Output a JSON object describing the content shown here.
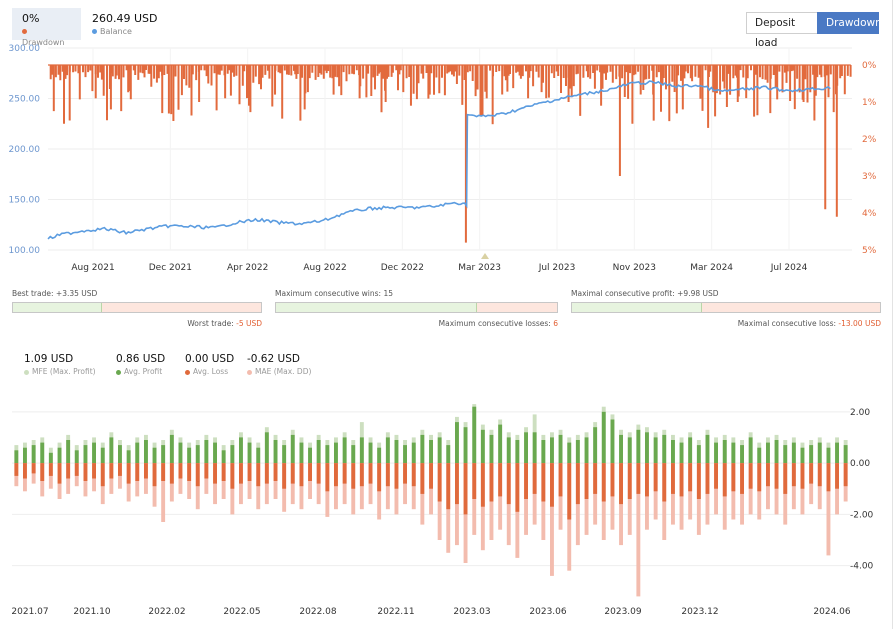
{
  "header": {
    "drawdown_value": "0%",
    "drawdown_label": "Drawdown",
    "balance_value": "260.49 USD",
    "balance_label": "Balance",
    "btn_deposit": "Deposit load",
    "btn_drawdown": "Drawdown"
  },
  "colors": {
    "balance": "#5b9ce0",
    "drawdown": "#e26a3d",
    "profit": "#6aa84f",
    "loss": "#e06a3c",
    "mfe": "#cddfc0",
    "mae": "#f3bcae",
    "accent": "#4a79c4"
  },
  "stats": {
    "best_trade_label": "Best trade:",
    "best_trade_value": "+3.35 USD",
    "worst_trade_label": "Worst trade:",
    "worst_trade_value": "-5 USD",
    "max_wins_label": "Maximum consecutive wins:",
    "max_wins_value": "15",
    "max_losses_label": "Maximum consecutive losses:",
    "max_losses_value": "6",
    "max_profit_label": "Maximal consecutive profit:",
    "max_profit_value": "+9.98 USD",
    "max_loss_label": "Maximal consecutive loss:",
    "max_loss_value": "-13.00 USD",
    "bar_fractions": [
      0.355,
      0.71,
      0.42
    ]
  },
  "legend2": [
    {
      "value": "1.09 USD",
      "label": "MFE (Max. Profit)",
      "color": "#cddfc0"
    },
    {
      "value": "0.86 USD",
      "label": "Avg. Profit",
      "color": "#6aa84f"
    },
    {
      "value": "0.00 USD",
      "label": "Avg. Loss",
      "color": "#e06a3c"
    },
    {
      "value": "-0.62 USD",
      "label": "MAE (Max. DD)",
      "color": "#f3bcae"
    }
  ],
  "chart_data": [
    {
      "type": "line",
      "series": [
        {
          "name": "Balance",
          "points": [
            [
              "2021-06-15",
              111
            ],
            [
              "2021-07-01",
              115
            ],
            [
              "2021-08-01",
              119
            ],
            [
              "2021-09-01",
              121
            ],
            [
              "2021-10-01",
              117
            ],
            [
              "2021-11-01",
              121
            ],
            [
              "2021-12-01",
              124
            ],
            [
              "2022-01-01",
              123
            ],
            [
              "2022-02-01",
              122
            ],
            [
              "2022-03-01",
              127
            ],
            [
              "2022-04-01",
              130
            ],
            [
              "2022-05-01",
              127
            ],
            [
              "2022-06-01",
              126
            ],
            [
              "2022-07-01",
              129
            ],
            [
              "2022-08-01",
              137
            ],
            [
              "2022-09-01",
              141
            ],
            [
              "2022-10-01",
              142
            ],
            [
              "2022-11-01",
              142
            ],
            [
              "2022-12-01",
              143
            ],
            [
              "2023-01-01",
              147
            ],
            [
              "2023-01-15",
              145
            ],
            [
              "2023-01-16",
              234
            ],
            [
              "2023-02-01",
              232
            ],
            [
              "2023-03-01",
              234
            ],
            [
              "2023-04-01",
              240
            ],
            [
              "2023-05-01",
              246
            ],
            [
              "2023-06-01",
              251
            ],
            [
              "2023-07-01",
              255
            ],
            [
              "2023-08-01",
              259
            ],
            [
              "2023-09-01",
              265
            ],
            [
              "2023-10-01",
              266
            ],
            [
              "2023-11-01",
              262
            ],
            [
              "2023-12-01",
              263
            ],
            [
              "2024-01-01",
              257
            ],
            [
              "2024-02-01",
              259
            ],
            [
              "2024-03-01",
              261
            ],
            [
              "2024-04-01",
              258
            ],
            [
              "2024-05-01",
              259
            ],
            [
              "2024-06-01",
              260.49
            ]
          ]
        },
        {
          "name": "Drawdown",
          "axis": "right",
          "points": [
            [
              "2021-07-15",
              1.5
            ],
            [
              "2021-08-20",
              0.9
            ],
            [
              "2021-09-10",
              1.2
            ],
            [
              "2021-10-05",
              0.7
            ],
            [
              "2021-11-20",
              1.3
            ],
            [
              "2022-01-10",
              1.0
            ],
            [
              "2022-02-15",
              0.9
            ],
            [
              "2022-03-20",
              1.1
            ],
            [
              "2022-04-25",
              0.8
            ],
            [
              "2022-06-05",
              1.2
            ],
            [
              "2022-07-15",
              0.8
            ],
            [
              "2022-08-20",
              0.9
            ],
            [
              "2022-09-25",
              1.0
            ],
            [
              "2022-10-30",
              1.1
            ],
            [
              "2022-11-25",
              0.8
            ],
            [
              "2023-01-14",
              4.8
            ],
            [
              "2023-02-20",
              1.6
            ],
            [
              "2023-04-10",
              0.9
            ],
            [
              "2023-06-05",
              1.0
            ],
            [
              "2023-07-20",
              1.1
            ],
            [
              "2023-08-15",
              3.0
            ],
            [
              "2023-09-30",
              0.8
            ],
            [
              "2023-11-10",
              1.2
            ],
            [
              "2023-12-15",
              1.7
            ],
            [
              "2024-01-25",
              1.0
            ],
            [
              "2024-03-10",
              1.3
            ],
            [
              "2024-04-25",
              1.0
            ],
            [
              "2024-05-10",
              1.5
            ],
            [
              "2024-05-25",
              3.9
            ],
            [
              "2024-06-10",
              4.1
            ]
          ]
        }
      ],
      "x_ticks": [
        "Aug 2021",
        "Dec 2021",
        "Apr 2022",
        "Aug 2022",
        "Dec 2022",
        "Mar 2023",
        "Jul 2023",
        "Nov 2023",
        "Mar 2024",
        "Jul 2024"
      ],
      "xlim": [
        "2021-06-15",
        "2024-07-01"
      ],
      "y_ticks": [
        "300.00",
        "250.00",
        "200.00",
        "150.00",
        "100.00"
      ],
      "ylim": [
        100,
        300
      ],
      "y2_ticks": [
        "0%",
        "1%",
        "2%",
        "3%",
        "4%",
        "5%"
      ],
      "y2lim": [
        0,
        5
      ],
      "grid": true
    },
    {
      "type": "bar",
      "series": [
        {
          "name": "MFE (Max. Profit)",
          "values": [
            0.7,
            0.8,
            0.9,
            1.0,
            0.6,
            0.8,
            1.1,
            0.7,
            0.9,
            1.0,
            0.8,
            1.2,
            0.9,
            0.7,
            1.0,
            1.1,
            0.8,
            0.9,
            1.3,
            1.0,
            0.8,
            0.9,
            1.1,
            1.0,
            0.7,
            0.9,
            1.2,
            1.0,
            0.8,
            1.4,
            1.1,
            0.9,
            1.3,
            1.0,
            0.8,
            1.1,
            0.9,
            1.0,
            1.2,
            0.9,
            1.6,
            1.0,
            0.8,
            1.2,
            1.1,
            0.9,
            1.0,
            1.3,
            1.1,
            1.2,
            0.9,
            1.8,
            1.6,
            2.3,
            1.5,
            1.3,
            1.7,
            1.2,
            1.1,
            1.4,
            1.9,
            1.1,
            1.2,
            1.3,
            1.0,
            1.1,
            1.2,
            1.6,
            2.2,
            1.9,
            1.3,
            1.2,
            1.5,
            1.4,
            1.2,
            1.3,
            1.1,
            1.0,
            1.2,
            0.9,
            1.3,
            1.0,
            1.1,
            1.0,
            0.9,
            1.2,
            0.8,
            1.0,
            1.1,
            0.9,
            1.0,
            0.8,
            0.9,
            1.0,
            0.8,
            1.0,
            0.9
          ]
        },
        {
          "name": "Avg. Profit",
          "values": [
            0.5,
            0.6,
            0.7,
            0.8,
            0.4,
            0.6,
            0.9,
            0.5,
            0.7,
            0.8,
            0.6,
            1.0,
            0.7,
            0.5,
            0.8,
            0.9,
            0.6,
            0.7,
            1.1,
            0.8,
            0.6,
            0.7,
            0.9,
            0.8,
            0.5,
            0.7,
            1.0,
            0.8,
            0.6,
            1.2,
            0.9,
            0.7,
            1.1,
            0.8,
            0.6,
            0.9,
            0.7,
            0.8,
            1.0,
            0.7,
            1.0,
            0.8,
            0.6,
            1.0,
            0.9,
            0.7,
            0.8,
            1.1,
            0.9,
            1.0,
            0.7,
            1.6,
            1.4,
            2.2,
            1.3,
            1.1,
            1.5,
            1.0,
            0.9,
            1.2,
            1.2,
            0.9,
            1.0,
            1.1,
            0.8,
            0.9,
            1.0,
            1.4,
            2.0,
            1.7,
            1.1,
            1.0,
            1.3,
            1.2,
            1.0,
            1.1,
            0.9,
            0.8,
            1.0,
            0.7,
            1.1,
            0.8,
            0.9,
            0.8,
            0.7,
            1.0,
            0.6,
            0.8,
            0.9,
            0.7,
            0.8,
            0.6,
            0.7,
            0.8,
            0.6,
            0.8,
            0.7
          ]
        },
        {
          "name": "Avg. Loss",
          "values": [
            -0.5,
            -0.6,
            -0.4,
            -0.7,
            -0.5,
            -0.8,
            -0.6,
            -0.5,
            -0.7,
            -0.6,
            -0.9,
            -0.6,
            -0.5,
            -0.8,
            -0.7,
            -0.6,
            -0.9,
            -0.7,
            -0.8,
            -0.6,
            -0.7,
            -0.9,
            -0.6,
            -0.8,
            -0.7,
            -1.0,
            -0.8,
            -0.7,
            -0.9,
            -0.8,
            -0.7,
            -1.0,
            -0.8,
            -0.9,
            -0.7,
            -0.8,
            -1.1,
            -0.9,
            -0.8,
            -1.0,
            -0.9,
            -0.8,
            -1.1,
            -0.9,
            -1.0,
            -0.8,
            -0.9,
            -1.2,
            -1.0,
            -1.5,
            -1.8,
            -1.6,
            -2.0,
            -1.4,
            -1.7,
            -1.5,
            -1.3,
            -1.6,
            -1.9,
            -1.4,
            -1.2,
            -1.5,
            -1.7,
            -1.3,
            -2.2,
            -1.6,
            -1.4,
            -1.2,
            -1.5,
            -1.3,
            -1.6,
            -1.4,
            -1.2,
            -1.3,
            -1.1,
            -1.5,
            -1.2,
            -1.3,
            -1.1,
            -1.4,
            -1.2,
            -1.0,
            -1.3,
            -1.1,
            -1.2,
            -1.0,
            -1.1,
            -0.9,
            -1.0,
            -1.2,
            -0.9,
            -1.0,
            -0.8,
            -0.9,
            -1.1,
            -1.0,
            -0.9
          ]
        },
        {
          "name": "MAE (Max. DD)",
          "values": [
            -0.9,
            -1.1,
            -0.8,
            -1.3,
            -1.0,
            -1.4,
            -1.2,
            -0.9,
            -1.3,
            -1.1,
            -1.6,
            -1.2,
            -1.0,
            -1.5,
            -1.3,
            -1.2,
            -1.7,
            -2.3,
            -1.5,
            -1.2,
            -1.4,
            -1.8,
            -1.2,
            -1.6,
            -1.4,
            -2.0,
            -1.6,
            -1.4,
            -1.8,
            -1.6,
            -1.4,
            -1.9,
            -1.6,
            -1.8,
            -1.4,
            -1.6,
            -2.1,
            -1.8,
            -1.6,
            -2.0,
            -1.8,
            -1.6,
            -2.2,
            -1.8,
            -2.0,
            -1.6,
            -1.8,
            -2.4,
            -2.0,
            -3.0,
            -3.5,
            -3.2,
            -3.9,
            -2.8,
            -3.4,
            -3.0,
            -2.6,
            -3.2,
            -3.7,
            -2.8,
            -2.4,
            -3.0,
            -4.4,
            -2.6,
            -4.2,
            -3.2,
            -2.8,
            -2.4,
            -3.0,
            -2.6,
            -3.2,
            -2.8,
            -5.2,
            -2.6,
            -2.2,
            -3.0,
            -2.4,
            -2.6,
            -2.2,
            -2.8,
            -2.4,
            -2.0,
            -2.6,
            -2.2,
            -2.4,
            -2.0,
            -2.2,
            -1.8,
            -2.0,
            -2.4,
            -1.8,
            -2.0,
            -1.6,
            -1.8,
            -3.6,
            -2.0,
            -1.5
          ]
        }
      ],
      "x_ticks": [
        "2021.07",
        "2021.10",
        "2022.02",
        "2022.05",
        "2022.08",
        "2022.11",
        "2023.03",
        "2023.06",
        "2023.09",
        "2023.12",
        "2024.06"
      ],
      "y_ticks": [
        "2.00",
        "0.00",
        "-2.00",
        "-4.00"
      ],
      "ylim": [
        -5.5,
        2.5
      ],
      "grid": true
    }
  ]
}
